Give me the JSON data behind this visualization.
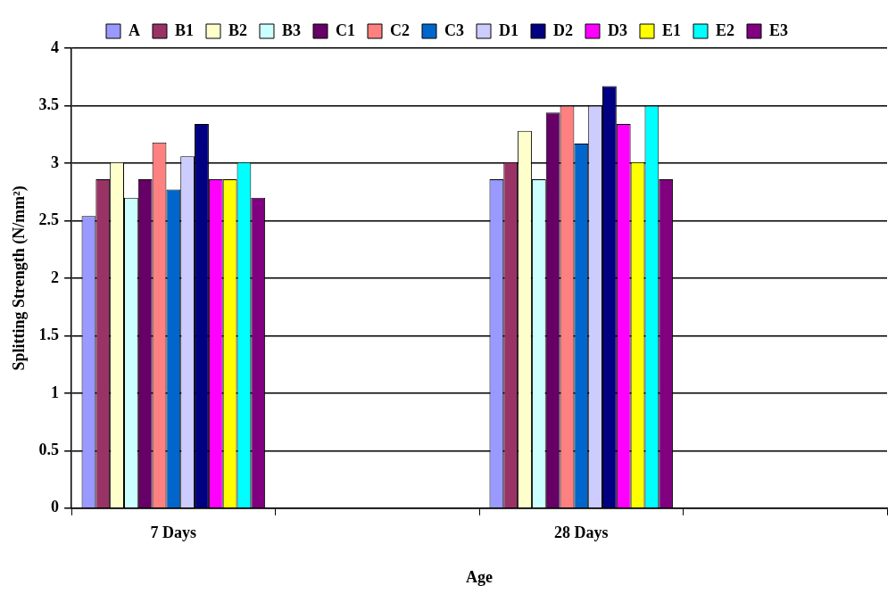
{
  "chart_data": {
    "type": "bar",
    "xlabel": "Age",
    "ylabel": "Splitting Strength (N/mm²)",
    "categories": [
      "7 Days",
      null,
      "28 Days",
      null
    ],
    "series": [
      {
        "name": "A",
        "color": "#9999ff",
        "values": [
          2.54,
          null,
          2.86,
          null
        ]
      },
      {
        "name": "B1",
        "color": "#993366",
        "values": [
          2.86,
          null,
          3.01,
          null
        ]
      },
      {
        "name": "B2",
        "color": "#ffffcc",
        "values": [
          3.01,
          null,
          3.28,
          null
        ]
      },
      {
        "name": "B3",
        "color": "#ccffff",
        "values": [
          2.7,
          null,
          2.86,
          null
        ]
      },
      {
        "name": "C1",
        "color": "#660066",
        "values": [
          2.86,
          null,
          3.44,
          null
        ]
      },
      {
        "name": "C2",
        "color": "#ff8080",
        "values": [
          3.18,
          null,
          3.5,
          null
        ]
      },
      {
        "name": "C3",
        "color": "#0066cc",
        "values": [
          2.77,
          null,
          3.17,
          null
        ]
      },
      {
        "name": "D1",
        "color": "#ccccff",
        "values": [
          3.06,
          null,
          3.5,
          null
        ]
      },
      {
        "name": "D2",
        "color": "#000080",
        "values": [
          3.34,
          null,
          3.67,
          null
        ]
      },
      {
        "name": "D3",
        "color": "#ff00ff",
        "values": [
          2.86,
          null,
          3.34,
          null
        ]
      },
      {
        "name": "E1",
        "color": "#ffff00",
        "values": [
          2.86,
          null,
          3.01,
          null
        ]
      },
      {
        "name": "E2",
        "color": "#00ffff",
        "values": [
          3.01,
          null,
          3.5,
          null
        ]
      },
      {
        "name": "E3",
        "color": "#800080",
        "values": [
          2.7,
          null,
          2.86,
          null
        ]
      }
    ],
    "ylim": [
      0,
      4
    ],
    "yticks": [
      0,
      0.5,
      1,
      1.5,
      2,
      2.5,
      3,
      3.5,
      4
    ],
    "grid": "y",
    "legend": "top"
  }
}
